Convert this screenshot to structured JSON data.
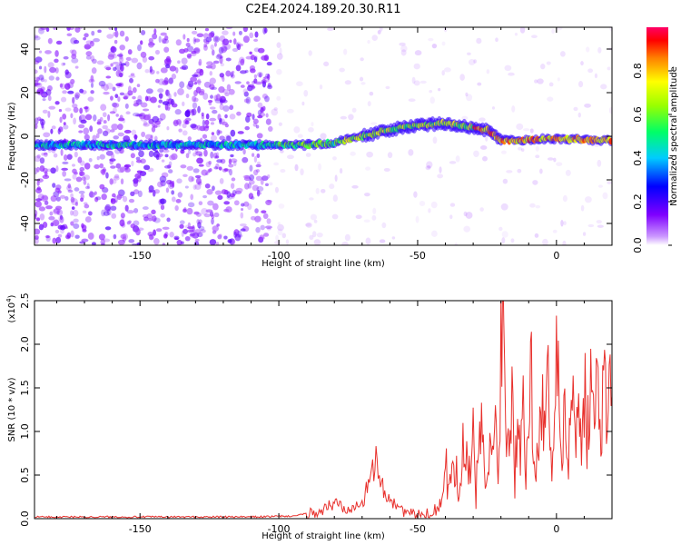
{
  "chart_data": [
    {
      "type": "heatmap",
      "title": "C2E4.2024.189.20.30.R11",
      "xlabel": "Height of straight line (km)",
      "ylabel": "Frequency (Hz)",
      "xlim": [
        -188,
        20
      ],
      "ylim": [
        -50,
        50
      ],
      "xticks": [
        -150,
        -100,
        -50,
        0
      ],
      "yticks": [
        -40,
        -20,
        0,
        20,
        40
      ],
      "colorbar": {
        "label": "Normalized spectral amplitude",
        "range": [
          0,
          1
        ],
        "ticks": [
          "0.0",
          "0.2",
          "0.4",
          "0.6",
          "0.8"
        ],
        "colormap": "rainbow (purple-blue-cyan-green-yellow-red-magenta)"
      },
      "ridge": {
        "x": [
          -188,
          -150,
          -110,
          -90,
          -80,
          -70,
          -60,
          -50,
          -40,
          -30,
          -25,
          -20,
          -15,
          0,
          20
        ],
        "y": [
          -4,
          -4,
          -4,
          -4,
          -3,
          0,
          3,
          5,
          6,
          4,
          3,
          -2,
          -2,
          -1,
          -2
        ]
      }
    },
    {
      "type": "line",
      "title": "",
      "xlabel": "Height of straight line (km)",
      "ylabel": "SNR (10 * v/v)",
      "ylabel_multiplier": "(x10",
      "ylabel_multiplier_exp": "4",
      "ylabel_multiplier_close": ")",
      "xlim": [
        -188,
        20
      ],
      "ylim": [
        0,
        2.5
      ],
      "xticks": [
        -150,
        -100,
        -50,
        0
      ],
      "yticks": [
        "0.0",
        "0.5",
        "1.0",
        "1.5",
        "2.0",
        "2.5"
      ],
      "series": [
        {
          "color": "#e8302c",
          "x": [
            -188,
            -160,
            -130,
            -110,
            -95,
            -85,
            -80,
            -75,
            -72,
            -70,
            -67,
            -65,
            -63,
            -60,
            -57,
            -55,
            -52,
            -50,
            -47,
            -45,
            -43,
            -42,
            -41,
            -40,
            -39,
            -38,
            -37,
            -36,
            -35,
            -34,
            -33,
            -32,
            -31,
            -30,
            -29,
            -28,
            -27,
            -26,
            -25,
            -24,
            -23,
            -22,
            -21,
            -20,
            -19,
            -18,
            -17,
            -16,
            -15,
            -14,
            -13,
            -12,
            -11,
            -10,
            -9,
            -8,
            -7,
            -6,
            -5,
            -4,
            -3,
            -2,
            -1,
            0,
            1,
            2,
            3,
            4,
            5,
            6,
            7,
            8,
            9,
            10,
            11,
            12,
            13,
            14,
            15,
            16,
            17,
            18,
            19,
            20
          ],
          "y": [
            0.02,
            0.02,
            0.02,
            0.02,
            0.03,
            0.08,
            0.18,
            0.12,
            0.22,
            0.15,
            0.45,
            0.72,
            0.35,
            0.25,
            0.14,
            0.09,
            0.05,
            0.04,
            0.05,
            0.08,
            0.12,
            0.18,
            0.25,
            0.55,
            0.45,
            0.8,
            0.4,
            0.65,
            0.35,
            0.85,
            0.5,
            0.7,
            0.45,
            0.9,
            0.3,
            0.75,
            0.95,
            0.55,
            0.4,
            0.8,
            0.6,
            1.2,
            0.5,
            2.05,
            2.5,
            1.1,
            0.7,
            1.6,
            0.5,
            1.3,
            0.9,
            1.8,
            0.6,
            1.2,
            1.65,
            0.5,
            1.0,
            0.95,
            1.4,
            0.8,
            1.9,
            0.7,
            0.8,
            2.3,
            1.0,
            0.7,
            1.5,
            0.6,
            1.1,
            1.45,
            0.9,
            1.3,
            1.05,
            1.5,
            1.0,
            1.55,
            1.25,
            1.35,
            1.45,
            1.2,
            1.5,
            1.42,
            1.55,
            1.4
          ]
        }
      ]
    }
  ]
}
